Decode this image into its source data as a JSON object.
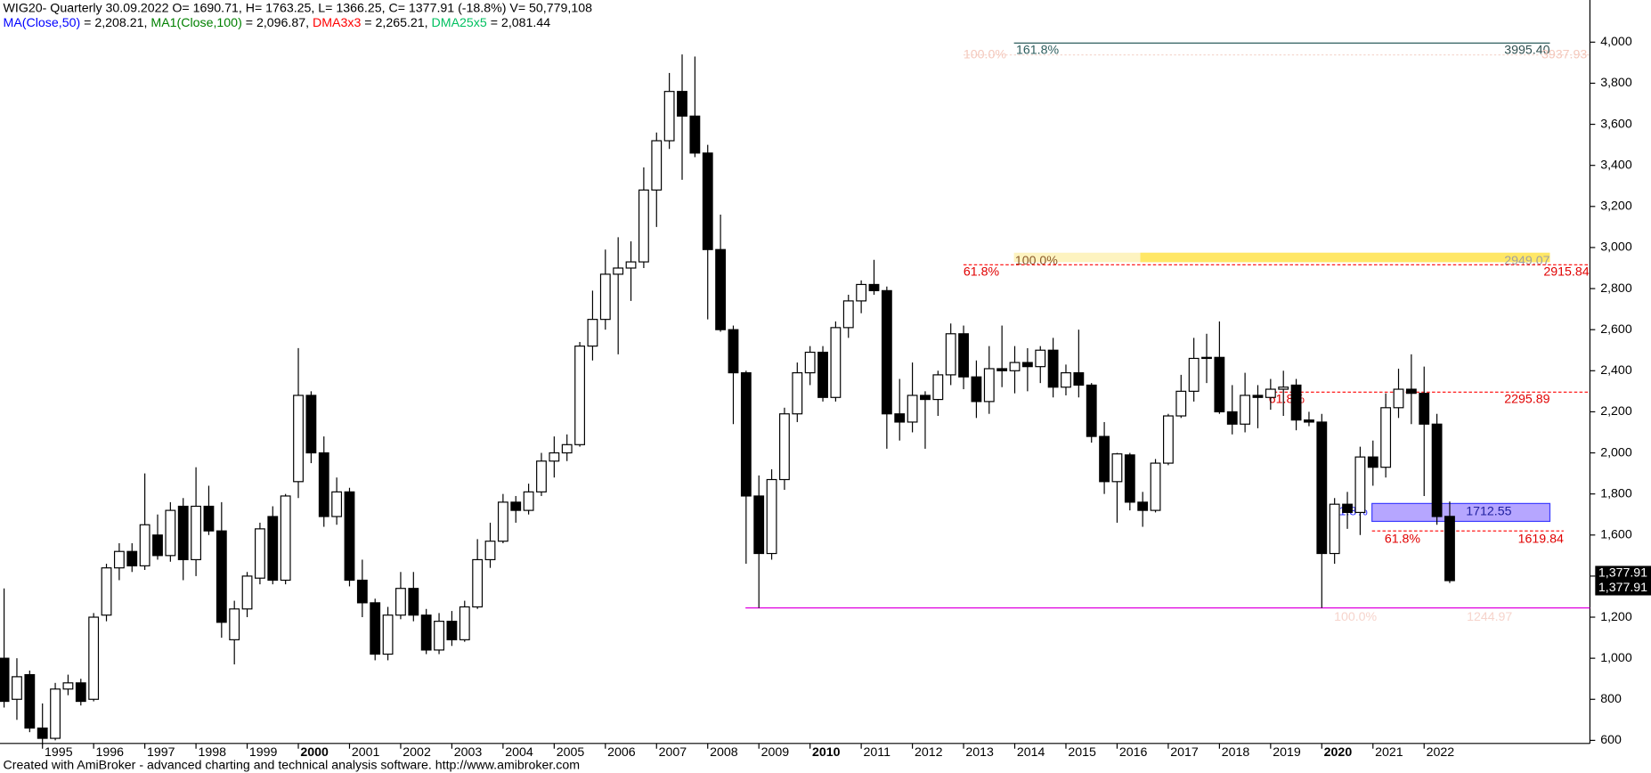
{
  "chart_data": {
    "type": "candlestick",
    "title": "WIG20- Quarterly 30.09.2022 O= 1690.71, H= 1763.25, L= 1366.25, C= 1377.91 (-18.8%) V= 50,779,108",
    "indicators": [
      {
        "text": "MA(Close,50)",
        "color": "#0000ff"
      },
      {
        "text": " = 2,208.21, ",
        "color": "#000000"
      },
      {
        "text": "MA1(Close,100)",
        "color": "#008000"
      },
      {
        "text": " = 2,096.87, ",
        "color": "#000000"
      },
      {
        "text": "DMA3x3",
        "color": "#ff0000"
      },
      {
        "text": " = 2,265.21, ",
        "color": "#000000"
      },
      {
        "text": "DMA25x5",
        "color": "#00c060"
      },
      {
        "text": " = 2,081.44",
        "color": "#000000"
      }
    ],
    "footer": "Created with AmiBroker - advanced charting and technical analysis software. http://www.amibroker.com",
    "up_color": "#ffffff",
    "down_color": "#000000",
    "x": [
      1994.25,
      1994.5,
      1994.75,
      1995,
      1995.25,
      1995.5,
      1995.75,
      1996,
      1996.25,
      1996.5,
      1996.75,
      1997,
      1997.25,
      1997.5,
      1997.75,
      1998,
      1998.25,
      1998.5,
      1998.75,
      1999,
      1999.25,
      1999.5,
      1999.75,
      2000,
      2000.25,
      2000.5,
      2000.75,
      2001,
      2001.25,
      2001.5,
      2001.75,
      2002,
      2002.25,
      2002.5,
      2002.75,
      2003,
      2003.25,
      2003.5,
      2003.75,
      2004,
      2004.25,
      2004.5,
      2004.75,
      2005,
      2005.25,
      2005.5,
      2005.75,
      2006,
      2006.25,
      2006.5,
      2006.75,
      2007,
      2007.25,
      2007.5,
      2007.75,
      2008,
      2008.25,
      2008.5,
      2008.75,
      2009,
      2009.25,
      2009.5,
      2009.75,
      2010,
      2010.25,
      2010.5,
      2010.75,
      2011,
      2011.25,
      2011.5,
      2011.75,
      2012,
      2012.25,
      2012.5,
      2012.75,
      2013,
      2013.25,
      2013.5,
      2013.75,
      2014,
      2014.25,
      2014.5,
      2014.75,
      2015,
      2015.25,
      2015.5,
      2015.75,
      2016,
      2016.25,
      2016.5,
      2016.75,
      2017,
      2017.25,
      2017.5,
      2017.75,
      2018,
      2018.25,
      2018.5,
      2018.75,
      2019,
      2019.25,
      2019.5,
      2019.75,
      2020,
      2020.25,
      2020.5,
      2020.75,
      2021,
      2021.25,
      2021.5,
      2021.75,
      2022,
      2022.25,
      2022.5
    ],
    "candles": [
      [
        1000,
        1340,
        760,
        790
      ],
      [
        800,
        1000,
        700,
        910
      ],
      [
        920,
        940,
        640,
        660
      ],
      [
        660,
        780,
        580,
        610
      ],
      [
        610,
        880,
        600,
        850
      ],
      [
        850,
        920,
        820,
        880
      ],
      [
        880,
        900,
        770,
        790
      ],
      [
        800,
        1220,
        790,
        1200
      ],
      [
        1210,
        1460,
        1180,
        1440
      ],
      [
        1440,
        1560,
        1380,
        1520
      ],
      [
        1520,
        1560,
        1420,
        1450
      ],
      [
        1450,
        1900,
        1430,
        1650
      ],
      [
        1600,
        1700,
        1480,
        1500
      ],
      [
        1500,
        1760,
        1470,
        1720
      ],
      [
        1740,
        1780,
        1380,
        1480
      ],
      [
        1480,
        1930,
        1400,
        1740
      ],
      [
        1740,
        1840,
        1600,
        1620
      ],
      [
        1620,
        1760,
        1100,
        1175
      ],
      [
        1090,
        1280,
        970,
        1240
      ],
      [
        1240,
        1420,
        1200,
        1400
      ],
      [
        1390,
        1660,
        1360,
        1630
      ],
      [
        1690,
        1740,
        1360,
        1380
      ],
      [
        1380,
        1800,
        1360,
        1790
      ],
      [
        1860,
        2510,
        1780,
        2280
      ],
      [
        2280,
        2300,
        1950,
        2000
      ],
      [
        2000,
        2080,
        1640,
        1690
      ],
      [
        1690,
        1880,
        1650,
        1810
      ],
      [
        1810,
        1830,
        1350,
        1380
      ],
      [
        1380,
        1480,
        1200,
        1270
      ],
      [
        1270,
        1290,
        990,
        1020
      ],
      [
        1020,
        1250,
        990,
        1210
      ],
      [
        1210,
        1420,
        1190,
        1340
      ],
      [
        1340,
        1420,
        1180,
        1210
      ],
      [
        1210,
        1240,
        1020,
        1040
      ],
      [
        1040,
        1220,
        1020,
        1180
      ],
      [
        1180,
        1230,
        1060,
        1090
      ],
      [
        1090,
        1280,
        1080,
        1250
      ],
      [
        1250,
        1580,
        1240,
        1480
      ],
      [
        1480,
        1660,
        1440,
        1570
      ],
      [
        1570,
        1800,
        1560,
        1760
      ],
      [
        1760,
        1790,
        1660,
        1720
      ],
      [
        1720,
        1850,
        1700,
        1810
      ],
      [
        1810,
        2000,
        1790,
        1960
      ],
      [
        1960,
        2080,
        1880,
        2000
      ],
      [
        2000,
        2090,
        1960,
        2040
      ],
      [
        2040,
        2540,
        2030,
        2520
      ],
      [
        2520,
        2790,
        2450,
        2650
      ],
      [
        2650,
        2990,
        2600,
        2870
      ],
      [
        2870,
        3050,
        2480,
        2900
      ],
      [
        2900,
        3030,
        2740,
        2930
      ],
      [
        2930,
        3390,
        2900,
        3280
      ],
      [
        3280,
        3560,
        3100,
        3520
      ],
      [
        3520,
        3850,
        3480,
        3760
      ],
      [
        3760,
        3940,
        3330,
        3640
      ],
      [
        3640,
        3930,
        3440,
        3460
      ],
      [
        3460,
        3500,
        2650,
        2990
      ],
      [
        2990,
        3160,
        2590,
        2600
      ],
      [
        2600,
        2620,
        2140,
        2390
      ],
      [
        2390,
        2400,
        1460,
        1790
      ],
      [
        1790,
        1890,
        1245,
        1510
      ],
      [
        1510,
        1920,
        1480,
        1870
      ],
      [
        1870,
        2220,
        1820,
        2190
      ],
      [
        2190,
        2440,
        2150,
        2390
      ],
      [
        2390,
        2520,
        2330,
        2490
      ],
      [
        2490,
        2520,
        2250,
        2270
      ],
      [
        2270,
        2640,
        2250,
        2610
      ],
      [
        2610,
        2770,
        2560,
        2740
      ],
      [
        2740,
        2840,
        2680,
        2820
      ],
      [
        2820,
        2940,
        2770,
        2790
      ],
      [
        2790,
        2810,
        2020,
        2190
      ],
      [
        2190,
        2360,
        2060,
        2150
      ],
      [
        2150,
        2440,
        2100,
        2280
      ],
      [
        2280,
        2300,
        2020,
        2260
      ],
      [
        2260,
        2400,
        2180,
        2380
      ],
      [
        2380,
        2630,
        2330,
        2580
      ],
      [
        2580,
        2620,
        2310,
        2370
      ],
      [
        2370,
        2450,
        2170,
        2250
      ],
      [
        2250,
        2520,
        2190,
        2410
      ],
      [
        2410,
        2620,
        2320,
        2400
      ],
      [
        2400,
        2520,
        2290,
        2440
      ],
      [
        2440,
        2510,
        2300,
        2420
      ],
      [
        2420,
        2520,
        2340,
        2500
      ],
      [
        2500,
        2560,
        2270,
        2320
      ],
      [
        2320,
        2430,
        2280,
        2390
      ],
      [
        2390,
        2600,
        2270,
        2330
      ],
      [
        2330,
        2340,
        2050,
        2080
      ],
      [
        2080,
        2150,
        1800,
        1860
      ],
      [
        1860,
        2000,
        1660,
        1995
      ],
      [
        1990,
        2000,
        1720,
        1760
      ],
      [
        1760,
        1810,
        1640,
        1720
      ],
      [
        1720,
        1970,
        1710,
        1950
      ],
      [
        1950,
        2190,
        1940,
        2180
      ],
      [
        2180,
        2380,
        2170,
        2300
      ],
      [
        2300,
        2560,
        2250,
        2460
      ],
      [
        2460,
        2580,
        2340,
        2465
      ],
      [
        2465,
        2640,
        2190,
        2200
      ],
      [
        2200,
        2330,
        2090,
        2140
      ],
      [
        2140,
        2390,
        2100,
        2280
      ],
      [
        2280,
        2330,
        2120,
        2270
      ],
      [
        2270,
        2360,
        2210,
        2310
      ],
      [
        2310,
        2400,
        2180,
        2320
      ],
      [
        2330,
        2360,
        2110,
        2160
      ],
      [
        2160,
        2200,
        2130,
        2150
      ],
      [
        2150,
        2190,
        1245,
        1510
      ],
      [
        1510,
        1780,
        1460,
        1750
      ],
      [
        1750,
        1810,
        1630,
        1710
      ],
      [
        1710,
        2030,
        1600,
        1980
      ],
      [
        1980,
        2060,
        1840,
        1930
      ],
      [
        1930,
        2290,
        1880,
        2220
      ],
      [
        2220,
        2410,
        2170,
        2310
      ],
      [
        2310,
        2480,
        2140,
        2290
      ],
      [
        2290,
        2420,
        1790,
        2140
      ],
      [
        2140,
        2190,
        1650,
        1690
      ],
      [
        1690.71,
        1763.25,
        1366.25,
        1377.91
      ]
    ],
    "xlim": [
      1994.17,
      2025.24
    ],
    "xticks": [
      1995,
      1996,
      1997,
      1998,
      1999,
      2000,
      2001,
      2002,
      2003,
      2004,
      2005,
      2006,
      2007,
      2008,
      2009,
      2010,
      2011,
      2012,
      2013,
      2014,
      2015,
      2016,
      2017,
      2018,
      2019,
      2020,
      2021,
      2022
    ],
    "ylim": [
      585,
      4205
    ],
    "yticks": [
      600,
      800,
      {
        "value": 1000,
        "label": "1,000"
      },
      {
        "value": 1200,
        "label": "1,200"
      },
      {
        "value": 1400,
        "label": "1,400"
      },
      {
        "value": 1600,
        "label": "1,600"
      },
      {
        "value": 1800,
        "label": "1,800"
      },
      {
        "value": 2000,
        "label": "2,000"
      },
      {
        "value": 2200,
        "label": "2,200"
      },
      {
        "value": 2400,
        "label": "2,400"
      },
      {
        "value": 2600,
        "label": "2,600"
      },
      {
        "value": 2800,
        "label": "2,800"
      },
      {
        "value": 3000,
        "label": "3,000"
      },
      {
        "value": 3200,
        "label": "3,200"
      },
      {
        "value": 3400,
        "label": "3,400"
      },
      {
        "value": 3600,
        "label": "3,600"
      },
      {
        "value": 3800,
        "label": "3,800"
      },
      {
        "value": 4000,
        "label": "4,000"
      }
    ],
    "last_price": {
      "value": 1377.91,
      "label": "1,377.91"
    },
    "fib_levels": [
      {
        "value": 3995.4,
        "label": "3995.40",
        "pct": "161.8%"
      },
      {
        "value": 3937.93,
        "label": "3937.93",
        "pct": "100.0%"
      },
      {
        "value": 2949.07,
        "label": "2949.07",
        "pct": "100.0%"
      },
      {
        "value": 2915.84,
        "label": "2915.84",
        "pct": "61.8%"
      },
      {
        "value": 2295.89,
        "label": "2295.89",
        "pct": "61.8%"
      },
      {
        "value": 1712.55,
        "label": "1712.55",
        "pct": "61.8%"
      },
      {
        "value": 1619.84,
        "label": "1619.84",
        "pct": "61.8%"
      },
      {
        "value": 1244.97,
        "label": "1244.97",
        "pct": "100.0%"
      }
    ]
  }
}
